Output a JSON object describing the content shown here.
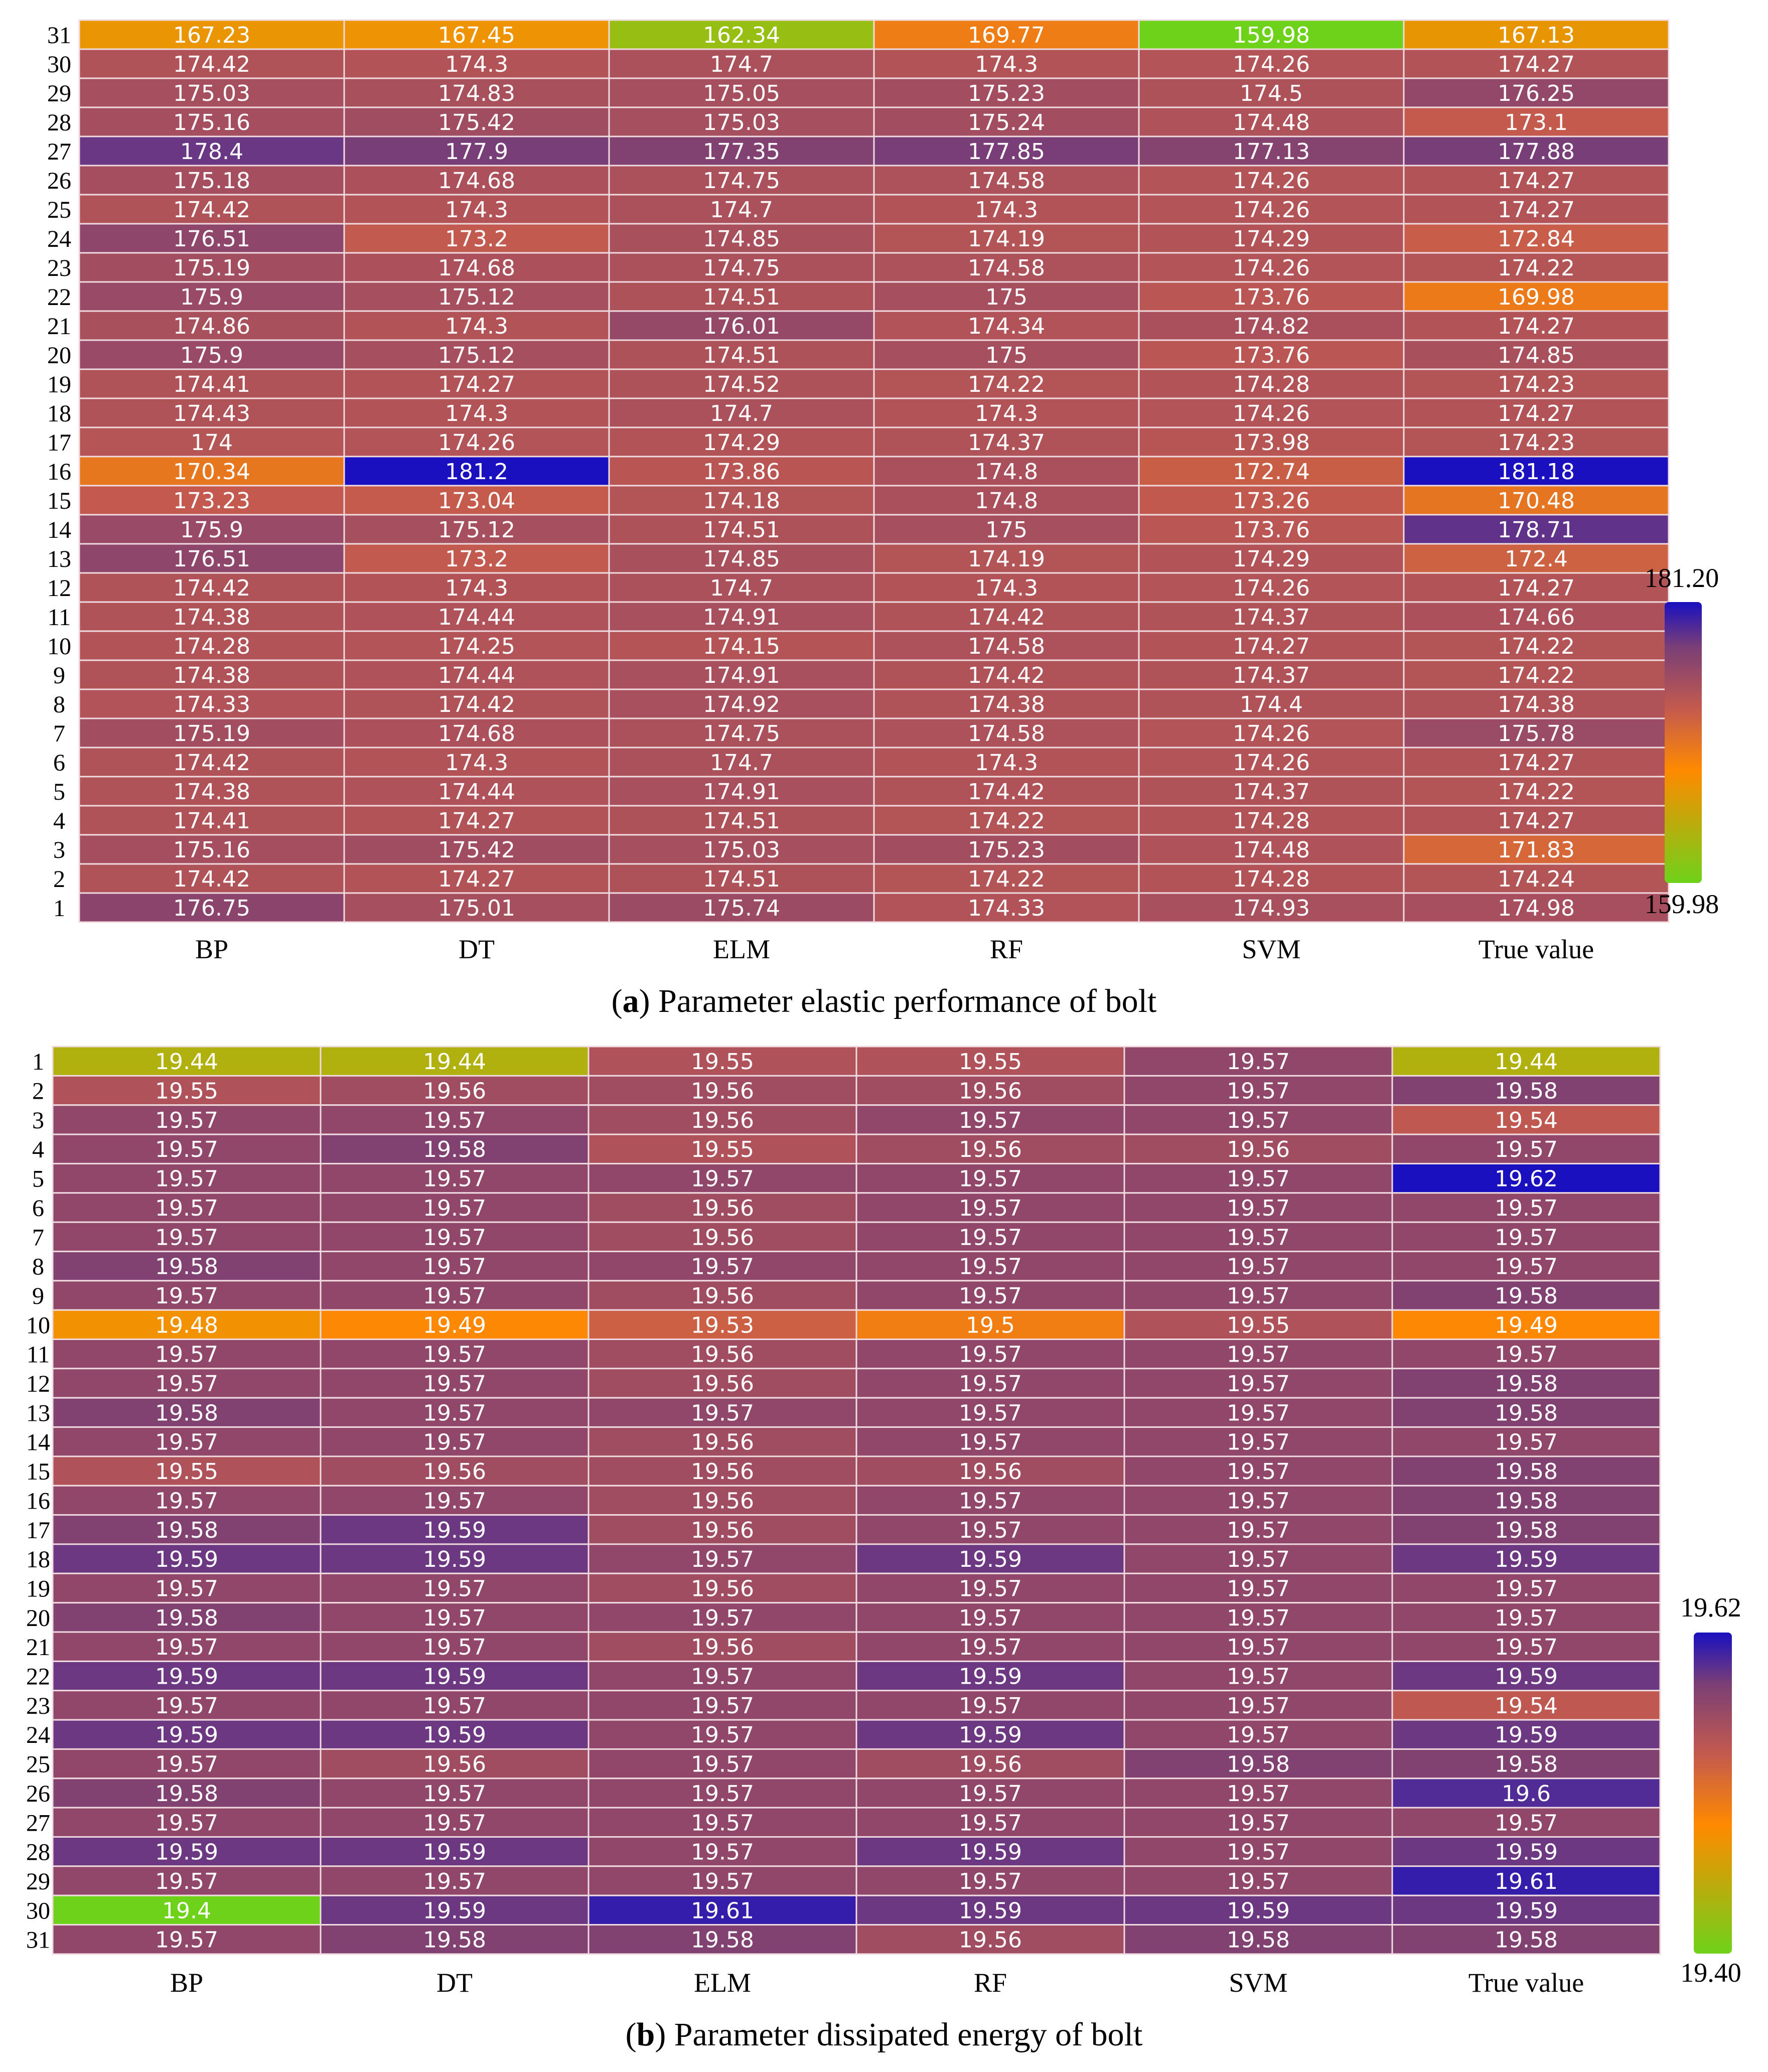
{
  "colors": {
    "low": "#6fd21a",
    "mid": "#ff8a00",
    "midhigh": "#c45a4e",
    "high2": "#7a3f76",
    "high": "#1a10c0",
    "grid": "#f0dce0"
  },
  "chart_data": [
    {
      "type": "heatmap",
      "id": "a",
      "caption_letter": "a",
      "caption_text": ") Parameter elastic performance of bolt",
      "columns": [
        "BP",
        "DT",
        "ELM",
        "RF",
        "SVM",
        "True value"
      ],
      "rows": [
        31,
        30,
        29,
        28,
        27,
        26,
        25,
        24,
        23,
        22,
        21,
        20,
        19,
        18,
        17,
        16,
        15,
        14,
        13,
        12,
        11,
        10,
        9,
        8,
        7,
        6,
        5,
        4,
        3,
        2,
        1
      ],
      "rows_label": [
        "31",
        "30",
        "29",
        "28",
        "27",
        "26",
        "25",
        "24",
        "23",
        "22",
        "21",
        "20",
        "19",
        "18",
        "17",
        "16",
        "15",
        "14",
        "13",
        "12",
        "11",
        "10",
        "9",
        "8",
        "7",
        "6",
        "5",
        "4",
        "3",
        "2",
        "1"
      ],
      "values": [
        [
          "167.23",
          "167.45",
          "162.34",
          "169.77",
          "159.98",
          "167.13"
        ],
        [
          "174.42",
          "174.3",
          "174.7",
          "174.3",
          "174.26",
          "174.27"
        ],
        [
          "175.03",
          "174.83",
          "175.05",
          "175.23",
          "174.5",
          "176.25"
        ],
        [
          "175.16",
          "175.42",
          "175.03",
          "175.24",
          "174.48",
          "173.1"
        ],
        [
          "178.4",
          "177.9",
          "177.35",
          "177.85",
          "177.13",
          "177.88"
        ],
        [
          "175.18",
          "174.68",
          "174.75",
          "174.58",
          "174.26",
          "174.27"
        ],
        [
          "174.42",
          "174.3",
          "174.7",
          "174.3",
          "174.26",
          "174.27"
        ],
        [
          "176.51",
          "173.2",
          "174.85",
          "174.19",
          "174.29",
          "172.84"
        ],
        [
          "175.19",
          "174.68",
          "174.75",
          "174.58",
          "174.26",
          "174.22"
        ],
        [
          "175.9",
          "175.12",
          "174.51",
          "175",
          "173.76",
          "169.98"
        ],
        [
          "174.86",
          "174.3",
          "176.01",
          "174.34",
          "174.82",
          "174.27"
        ],
        [
          "175.9",
          "175.12",
          "174.51",
          "175",
          "173.76",
          "174.85"
        ],
        [
          "174.41",
          "174.27",
          "174.52",
          "174.22",
          "174.28",
          "174.23"
        ],
        [
          "174.43",
          "174.3",
          "174.7",
          "174.3",
          "174.26",
          "174.27"
        ],
        [
          "174",
          "174.26",
          "174.29",
          "174.37",
          "173.98",
          "174.23"
        ],
        [
          "170.34",
          "181.2",
          "173.86",
          "174.8",
          "172.74",
          "181.18"
        ],
        [
          "173.23",
          "173.04",
          "174.18",
          "174.8",
          "173.26",
          "170.48"
        ],
        [
          "175.9",
          "175.12",
          "174.51",
          "175",
          "173.76",
          "178.71"
        ],
        [
          "176.51",
          "173.2",
          "174.85",
          "174.19",
          "174.29",
          "172.4"
        ],
        [
          "174.42",
          "174.3",
          "174.7",
          "174.3",
          "174.26",
          "174.27"
        ],
        [
          "174.38",
          "174.44",
          "174.91",
          "174.42",
          "174.37",
          "174.66"
        ],
        [
          "174.28",
          "174.25",
          "174.15",
          "174.58",
          "174.27",
          "174.22"
        ],
        [
          "174.38",
          "174.44",
          "174.91",
          "174.42",
          "174.37",
          "174.22"
        ],
        [
          "174.33",
          "174.42",
          "174.92",
          "174.38",
          "174.4",
          "174.38"
        ],
        [
          "175.19",
          "174.68",
          "174.75",
          "174.58",
          "174.26",
          "175.78"
        ],
        [
          "174.42",
          "174.3",
          "174.7",
          "174.3",
          "174.26",
          "174.27"
        ],
        [
          "174.38",
          "174.44",
          "174.91",
          "174.42",
          "174.37",
          "174.22"
        ],
        [
          "174.41",
          "174.27",
          "174.51",
          "174.22",
          "174.28",
          "174.27"
        ],
        [
          "175.16",
          "175.42",
          "175.03",
          "175.23",
          "174.48",
          "171.83"
        ],
        [
          "174.42",
          "174.27",
          "174.51",
          "174.22",
          "174.28",
          "174.24"
        ],
        [
          "176.75",
          "175.01",
          "175.74",
          "174.33",
          "174.93",
          "174.98"
        ]
      ],
      "color_min": 159.98,
      "color_max": 181.2,
      "scale_max_label": "181.20",
      "scale_min_label": "159.98"
    },
    {
      "type": "heatmap",
      "id": "b",
      "caption_letter": "b",
      "caption_text": ") Parameter dissipated energy of bolt",
      "columns": [
        "BP",
        "DT",
        "ELM",
        "RF",
        "SVM",
        "True value"
      ],
      "rows": [
        1,
        2,
        3,
        4,
        5,
        6,
        7,
        8,
        9,
        10,
        11,
        12,
        13,
        14,
        15,
        16,
        17,
        18,
        19,
        20,
        21,
        22,
        23,
        24,
        25,
        26,
        27,
        28,
        29,
        30,
        31
      ],
      "rows_label": [
        "1",
        "2",
        "3",
        "4",
        "5",
        "6",
        "7",
        "8",
        "9",
        "10",
        "11",
        "12",
        "13",
        "14",
        "15",
        "16",
        "17",
        "18",
        "19",
        "20",
        "21",
        "22",
        "23",
        "24",
        "25",
        "26",
        "27",
        "28",
        "29",
        "30",
        "31"
      ],
      "values": [
        [
          "19.44",
          "19.44",
          "19.55",
          "19.55",
          "19.57",
          "19.44"
        ],
        [
          "19.55",
          "19.56",
          "19.56",
          "19.56",
          "19.57",
          "19.58"
        ],
        [
          "19.57",
          "19.57",
          "19.56",
          "19.57",
          "19.57",
          "19.54"
        ],
        [
          "19.57",
          "19.58",
          "19.55",
          "19.56",
          "19.56",
          "19.57"
        ],
        [
          "19.57",
          "19.57",
          "19.57",
          "19.57",
          "19.57",
          "19.62"
        ],
        [
          "19.57",
          "19.57",
          "19.56",
          "19.57",
          "19.57",
          "19.57"
        ],
        [
          "19.57",
          "19.57",
          "19.56",
          "19.57",
          "19.57",
          "19.57"
        ],
        [
          "19.58",
          "19.57",
          "19.57",
          "19.57",
          "19.57",
          "19.57"
        ],
        [
          "19.57",
          "19.57",
          "19.56",
          "19.57",
          "19.57",
          "19.58"
        ],
        [
          "19.48",
          "19.49",
          "19.53",
          "19.5",
          "19.55",
          "19.49"
        ],
        [
          "19.57",
          "19.57",
          "19.56",
          "19.57",
          "19.57",
          "19.57"
        ],
        [
          "19.57",
          "19.57",
          "19.56",
          "19.57",
          "19.57",
          "19.58"
        ],
        [
          "19.58",
          "19.57",
          "19.57",
          "19.57",
          "19.57",
          "19.58"
        ],
        [
          "19.57",
          "19.57",
          "19.56",
          "19.57",
          "19.57",
          "19.57"
        ],
        [
          "19.55",
          "19.56",
          "19.56",
          "19.56",
          "19.57",
          "19.58"
        ],
        [
          "19.57",
          "19.57",
          "19.56",
          "19.57",
          "19.57",
          "19.58"
        ],
        [
          "19.58",
          "19.59",
          "19.56",
          "19.57",
          "19.57",
          "19.58"
        ],
        [
          "19.59",
          "19.59",
          "19.57",
          "19.59",
          "19.57",
          "19.59"
        ],
        [
          "19.57",
          "19.57",
          "19.56",
          "19.57",
          "19.57",
          "19.57"
        ],
        [
          "19.58",
          "19.57",
          "19.57",
          "19.57",
          "19.57",
          "19.57"
        ],
        [
          "19.57",
          "19.57",
          "19.56",
          "19.57",
          "19.57",
          "19.57"
        ],
        [
          "19.59",
          "19.59",
          "19.57",
          "19.59",
          "19.57",
          "19.59"
        ],
        [
          "19.57",
          "19.57",
          "19.57",
          "19.57",
          "19.57",
          "19.54"
        ],
        [
          "19.59",
          "19.59",
          "19.57",
          "19.59",
          "19.57",
          "19.59"
        ],
        [
          "19.57",
          "19.56",
          "19.57",
          "19.56",
          "19.58",
          "19.58"
        ],
        [
          "19.58",
          "19.57",
          "19.57",
          "19.57",
          "19.57",
          "19.6"
        ],
        [
          "19.57",
          "19.57",
          "19.57",
          "19.57",
          "19.57",
          "19.57"
        ],
        [
          "19.59",
          "19.59",
          "19.57",
          "19.59",
          "19.57",
          "19.59"
        ],
        [
          "19.57",
          "19.57",
          "19.57",
          "19.57",
          "19.57",
          "19.61"
        ],
        [
          "19.4",
          "19.59",
          "19.61",
          "19.59",
          "19.59",
          "19.59"
        ],
        [
          "19.57",
          "19.58",
          "19.58",
          "19.56",
          "19.58",
          "19.58"
        ]
      ],
      "color_min": 19.4,
      "color_max": 19.62,
      "scale_max_label": "19.62",
      "scale_min_label": "19.40"
    }
  ]
}
